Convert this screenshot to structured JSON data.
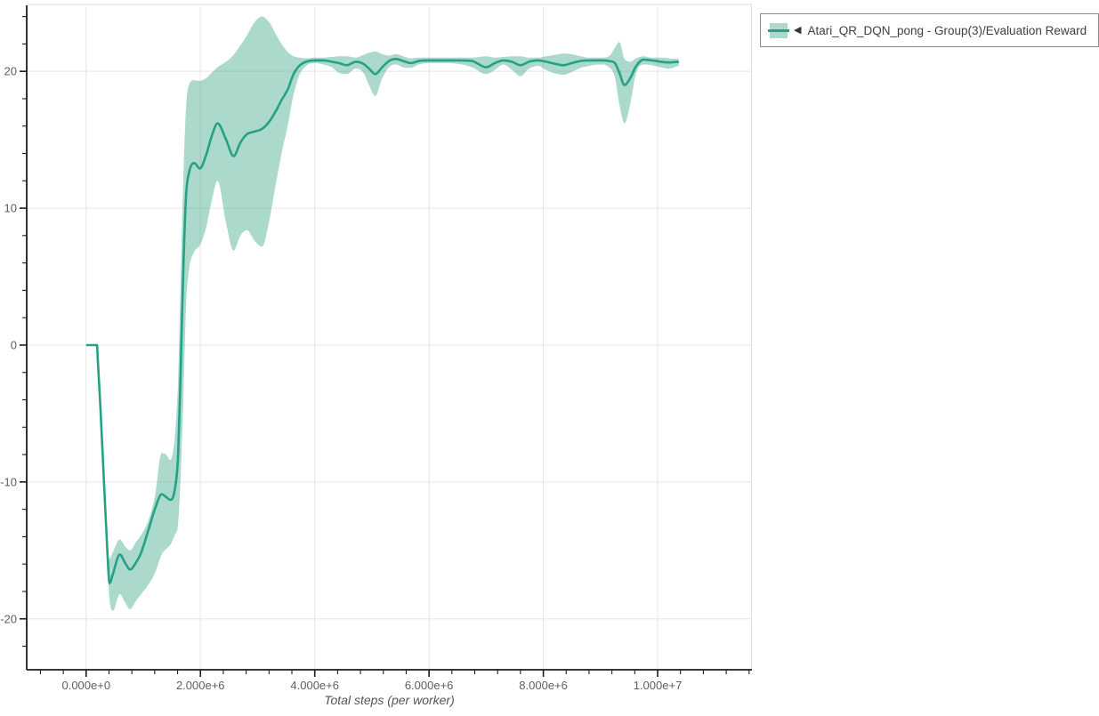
{
  "legend": {
    "marker": "◀",
    "label": "Atari_QR_DQN_pong - Group(3)/Evaluation Reward",
    "border_color": "#8c8c8c",
    "text_color": "#404040"
  },
  "chart_data": {
    "type": "line",
    "title": "",
    "xlabel": "Total steps (per worker)",
    "ylabel": "",
    "x_units": "steps (1e6)",
    "xlim_e6": [
      -1.04,
      11.65
    ],
    "ylim": [
      -23.72,
      24.69
    ],
    "x_major_ticks_e6": [
      0,
      2,
      4,
      6,
      8,
      10
    ],
    "x_tick_labels": [
      "0.000e+0",
      "2.000e+6",
      "4.000e+6",
      "6.000e+6",
      "8.000e+6",
      "1.000e+7"
    ],
    "x_minor_step_e6": 0.4,
    "y_major_ticks": [
      -20,
      -10,
      0,
      10,
      20
    ],
    "y_tick_labels": [
      "-20",
      "-10",
      "0",
      "10",
      "20"
    ],
    "y_minor_step": 2,
    "grid": "major-only",
    "legend_position": "top-right-outside",
    "colors": {
      "line": "#25a186",
      "band": "#36a583",
      "band_opacity": 0.42,
      "grid": "#e5e5e5",
      "outline": "#dedede",
      "axis": "#1c1c1c",
      "tick_label": "#5f5f5f",
      "axis_label": "#555555"
    },
    "series": [
      {
        "name": "Atari_QR_DQN_pong - Group(3)/Evaluation Reward",
        "steps_e6": [
          0,
          0.19,
          0.205,
          0.25,
          0.31,
          0.37,
          0.41,
          0.47,
          0.59,
          0.68,
          0.77,
          0.87,
          0.96,
          1.09,
          1.21,
          1.32,
          1.4,
          1.47,
          1.55,
          1.61,
          1.65,
          1.7,
          1.75,
          1.8,
          1.89,
          1.99,
          2.1,
          2.2,
          2.3,
          2.45,
          2.58,
          2.7,
          2.81,
          2.95,
          3.08,
          3.2,
          3.32,
          3.42,
          3.53,
          3.63,
          3.73,
          3.85,
          4,
          4.15,
          4.3,
          4.42,
          4.56,
          4.72,
          4.85,
          4.95,
          5.06,
          5.18,
          5.3,
          5.42,
          5.55,
          5.68,
          5.82,
          6,
          6.25,
          6.5,
          6.75,
          7,
          7.15,
          7.3,
          7.45,
          7.6,
          7.75,
          7.9,
          8.05,
          8.2,
          8.35,
          8.5,
          8.65,
          8.8,
          9,
          9.15,
          9.25,
          9.33,
          9.42,
          9.52,
          9.62,
          9.75,
          9.9,
          10.05,
          10.2,
          10.37
        ],
        "mean": [
          0,
          0,
          -1.2,
          -4.5,
          -9.8,
          -15,
          -17.4,
          -16.7,
          -15.3,
          -15.9,
          -16.4,
          -15.9,
          -15.2,
          -13.5,
          -11.9,
          -10.9,
          -11.1,
          -11.3,
          -10.6,
          -8,
          -2.5,
          5.5,
          11,
          12.6,
          13.3,
          12.9,
          13.9,
          15.3,
          16.2,
          15,
          13.8,
          14.8,
          15.4,
          15.6,
          15.8,
          16.3,
          17.1,
          17.9,
          18.7,
          19.8,
          20.4,
          20.7,
          20.8,
          20.8,
          20.7,
          20.6,
          20.45,
          20.7,
          20.55,
          20.2,
          19.8,
          20.3,
          20.75,
          20.9,
          20.75,
          20.6,
          20.75,
          20.8,
          20.8,
          20.8,
          20.75,
          20.3,
          20.6,
          20.8,
          20.7,
          20.45,
          20.7,
          20.8,
          20.7,
          20.55,
          20.45,
          20.6,
          20.75,
          20.8,
          20.8,
          20.75,
          20.6,
          19.9,
          19,
          19.5,
          20.35,
          20.85,
          20.8,
          20.7,
          20.65,
          20.7
        ],
        "lower": [
          0,
          0,
          -1.2,
          -4.5,
          -9.8,
          -15.2,
          -18.6,
          -19.4,
          -18.2,
          -18.8,
          -19.3,
          -18.7,
          -18.2,
          -17.5,
          -16.6,
          -15.3,
          -14.9,
          -14.6,
          -13.9,
          -13,
          -10,
          -4,
          3,
          5.5,
          6.8,
          7.3,
          8.6,
          10.6,
          12,
          8.9,
          6.9,
          8,
          8.4,
          7.6,
          7.2,
          9,
          11.8,
          14,
          16.1,
          18.3,
          19.7,
          20.4,
          20.6,
          20.5,
          20.3,
          19.9,
          19.8,
          20.2,
          19.9,
          19,
          18.2,
          19.5,
          20.3,
          20.5,
          20.3,
          20.25,
          20.5,
          20.6,
          20.6,
          20.55,
          20.3,
          19.8,
          20.1,
          20.5,
          20.1,
          19.65,
          20.2,
          20.4,
          20.1,
          19.85,
          19.75,
          19.95,
          20.25,
          20.4,
          20.5,
          20.3,
          19.6,
          17.6,
          16.2,
          17.6,
          19.8,
          20.5,
          20.45,
          20.3,
          20.2,
          20.4
        ],
        "upper": [
          0,
          0,
          -1.2,
          -4.5,
          -9.8,
          -14.8,
          -15.6,
          -15.1,
          -14.2,
          -14.7,
          -15,
          -14.4,
          -13.9,
          -12.8,
          -10.9,
          -7.9,
          -8,
          -8.4,
          -6.8,
          -2.5,
          4,
          12,
          17.5,
          19,
          19.35,
          19.3,
          19.5,
          19.9,
          20.3,
          20.7,
          21.2,
          21.9,
          22.6,
          23.6,
          24,
          23.6,
          22.7,
          22,
          21.4,
          21.1,
          21,
          20.95,
          21,
          21,
          21.05,
          21.1,
          21.1,
          21,
          21.2,
          21.35,
          21.45,
          21.25,
          21.15,
          21.25,
          21.1,
          20.95,
          21,
          21,
          21,
          21,
          21,
          21.1,
          21,
          21.05,
          21.1,
          21.1,
          21,
          21,
          21.1,
          21.2,
          21.3,
          21.25,
          21.1,
          21,
          21,
          21.1,
          21.7,
          22.15,
          20.9,
          20.7,
          20.95,
          21.1,
          21,
          21,
          20.95,
          20.9
        ]
      }
    ]
  }
}
